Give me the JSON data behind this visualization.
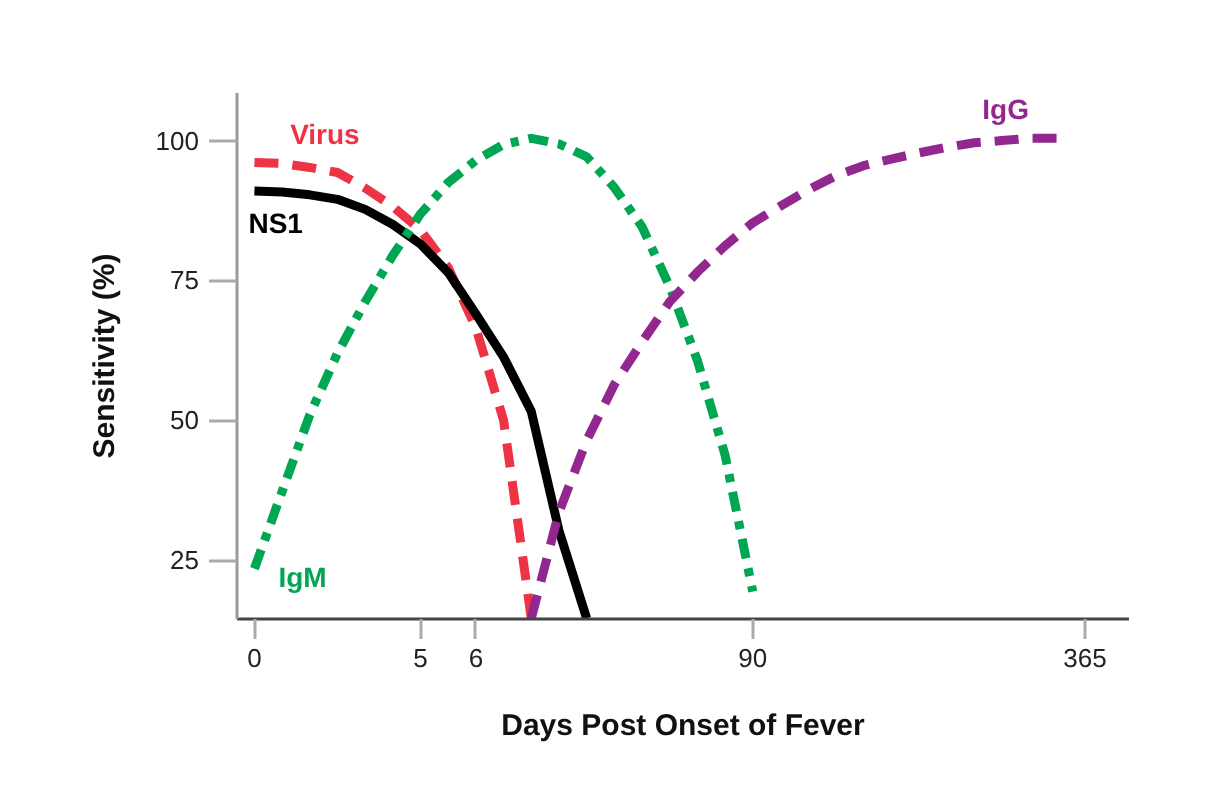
{
  "chart_data": {
    "type": "line",
    "xlabel": "Days Post Onset of Fever",
    "ylabel": "Sensitivity (%)",
    "categories": [
      "0",
      null,
      null,
      null,
      null,
      null,
      "5",
      null,
      "6",
      null,
      null,
      null,
      null,
      null,
      null,
      null,
      null,
      null,
      "90",
      null,
      null,
      null,
      null,
      null,
      null,
      null,
      null,
      null,
      null,
      null,
      "365"
    ],
    "ylim": [
      14.5,
      108.5
    ],
    "yticks": [
      25,
      50,
      75,
      100
    ],
    "grid": false,
    "series": [
      {
        "name": "Virus",
        "color": "#ee3344",
        "line_style": "dashed",
        "values": [
          96.1,
          95.9,
          95.2,
          94.3,
          91.5,
          88.2,
          84.0,
          77.3,
          66.5,
          50.0,
          14.6,
          null,
          null,
          null,
          null,
          null,
          null,
          null,
          null,
          null,
          null,
          null,
          null,
          null,
          null,
          null,
          null,
          null,
          null,
          null,
          null
        ]
      },
      {
        "name": "NS1",
        "color": "#000000",
        "line_style": "solid",
        "values": [
          91.0,
          90.8,
          90.3,
          89.5,
          87.7,
          85.0,
          81.5,
          76.4,
          69.0,
          61.3,
          51.6,
          30.3,
          14.6,
          null,
          null,
          null,
          null,
          null,
          null,
          null,
          null,
          null,
          null,
          null,
          null,
          null,
          null,
          null,
          null,
          null,
          null
        ]
      },
      {
        "name": "IgM",
        "color": "#00a651",
        "line_style": "dashdot",
        "values": [
          23.5,
          37.3,
          51.0,
          62.0,
          71.2,
          79.5,
          86.9,
          92.5,
          96.5,
          99.3,
          100.4,
          99.4,
          97.1,
          91.6,
          84.6,
          73.9,
          60.7,
          43.8,
          19.4,
          null,
          null,
          null,
          null,
          null,
          null,
          null,
          null,
          null,
          null,
          null,
          null
        ]
      },
      {
        "name": "IgG",
        "color": "#92278f",
        "line_style": "dashed",
        "values": [
          null,
          null,
          null,
          null,
          null,
          null,
          null,
          null,
          null,
          null,
          14.6,
          33.6,
          46.4,
          56.4,
          64.0,
          71.2,
          76.5,
          81.2,
          85.3,
          88.3,
          91.2,
          93.7,
          95.5,
          96.7,
          97.8,
          98.8,
          99.6,
          100.0,
          100.4,
          100.4,
          null
        ]
      }
    ]
  }
}
